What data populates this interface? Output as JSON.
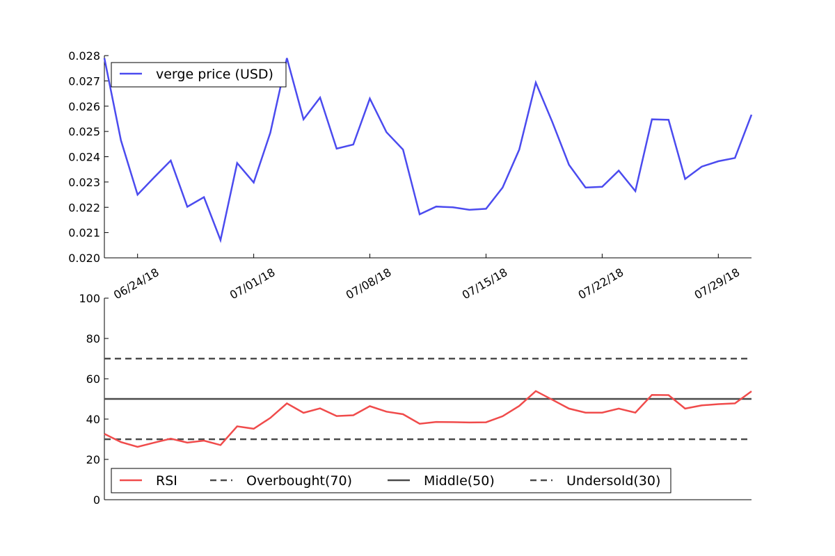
{
  "chart_data": [
    {
      "type": "line",
      "title": "",
      "xlabel": "",
      "ylabel": "",
      "x_start": "06/22/18",
      "x_end": "07/31/18",
      "xlim": [
        "06/22/18",
        "07/31/18"
      ],
      "ylim": [
        0.02,
        0.028
      ],
      "yticks": [
        "0.020",
        "0.021",
        "0.022",
        "0.023",
        "0.024",
        "0.025",
        "0.026",
        "0.027",
        "0.028"
      ],
      "xticks": [
        "06/24/18",
        "07/01/18",
        "07/08/18",
        "07/15/18",
        "07/22/18",
        "07/29/18"
      ],
      "legend": {
        "placement": "upper-left"
      },
      "series": [
        {
          "name": "verge price (USD)",
          "color": "#4b4bef",
          "values": [
            0.0279,
            0.02465,
            0.0225,
            0.02318,
            0.02385,
            0.02202,
            0.0224,
            0.0207,
            0.02375,
            0.02298,
            0.02495,
            0.0279,
            0.02548,
            0.02634,
            0.02432,
            0.02448,
            0.0263,
            0.02497,
            0.02428,
            0.02172,
            0.02203,
            0.022,
            0.0219,
            0.02194,
            0.02278,
            0.02428,
            0.02693,
            0.02537,
            0.02368,
            0.02278,
            0.02281,
            0.02345,
            0.02264,
            0.02548,
            0.02546,
            0.02312,
            0.02361,
            0.02382,
            0.02395,
            0.02566
          ]
        }
      ]
    },
    {
      "type": "line",
      "title": "",
      "xlabel": "",
      "ylabel": "",
      "x_start": "06/22/18",
      "x_end": "07/31/18",
      "ylim": [
        0,
        100
      ],
      "yticks": [
        "0",
        "20",
        "40",
        "60",
        "80",
        "100"
      ],
      "legend": {
        "placement": "lower-center"
      },
      "series": [
        {
          "name": "RSI",
          "color": "#f04b4b",
          "style": "solid",
          "values": [
            32.7,
            28.6,
            26.2,
            28.3,
            30.3,
            28.3,
            29.3,
            27.1,
            36.4,
            35.2,
            40.6,
            47.8,
            43.1,
            45.3,
            41.5,
            41.9,
            46.4,
            43.7,
            42.4,
            37.7,
            38.6,
            38.5,
            38.3,
            38.4,
            41.4,
            46.5,
            53.9,
            49.6,
            45.2,
            43.2,
            43.2,
            45.2,
            43.2,
            52.0,
            51.9,
            45.2,
            46.8,
            47.4,
            47.8,
            53.8
          ]
        },
        {
          "name": "Overbought(70)",
          "color": "#4a4a4a",
          "style": "dashed",
          "values": [
            70,
            70
          ]
        },
        {
          "name": "Middle(50)",
          "color": "#4a4a4a",
          "style": "solid",
          "values": [
            50,
            50
          ]
        },
        {
          "name": "Undersold(30)",
          "color": "#4a4a4a",
          "style": "dashed",
          "values": [
            30,
            30
          ]
        }
      ]
    }
  ]
}
